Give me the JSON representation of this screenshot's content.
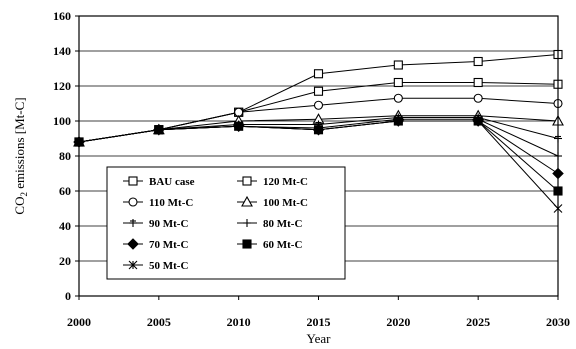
{
  "chart_data": {
    "type": "line",
    "xlabel": "Year",
    "ylabel_main": "CO",
    "ylabel_sub": "2",
    "ylabel_rest": " emissions [Mt-C]",
    "xlim": [
      2000,
      2030
    ],
    "ylim": [
      0,
      160
    ],
    "xticks": [
      "2000",
      "2005",
      "2010",
      "2015",
      "2020",
      "2025",
      "2030"
    ],
    "yticks": [
      "0",
      "20",
      "40",
      "60",
      "80",
      "100",
      "120",
      "140",
      "160"
    ],
    "grid": "horizontal",
    "legend_position": "bottom-left",
    "x": [
      2000,
      2005,
      2010,
      2015,
      2020,
      2025,
      2030
    ],
    "series": [
      {
        "name": "BAU case",
        "marker": "square-open",
        "values": [
          88,
          95,
          105,
          127,
          132,
          134,
          138
        ]
      },
      {
        "name": "120 Mt-C",
        "marker": "square-open",
        "values": [
          88,
          95,
          105,
          117,
          122,
          122,
          121
        ]
      },
      {
        "name": "110 Mt-C",
        "marker": "circle-open",
        "values": [
          88,
          95,
          105,
          109,
          113,
          113,
          110
        ]
      },
      {
        "name": "100 Mt-C",
        "marker": "triangle-open",
        "values": [
          88,
          95,
          100,
          101,
          103,
          103,
          100
        ]
      },
      {
        "name": "90 Mt-C",
        "marker": "plus-bar",
        "values": [
          88,
          95,
          98,
          98,
          102,
          102,
          90
        ]
      },
      {
        "name": "80 Mt-C",
        "marker": "plus",
        "values": [
          88,
          95,
          97,
          96,
          101,
          101,
          80
        ]
      },
      {
        "name": "70 Mt-C",
        "marker": "diamond-filled",
        "values": [
          88,
          95,
          97,
          95,
          100,
          100,
          70
        ]
      },
      {
        "name": "60 Mt-C",
        "marker": "square-filled",
        "values": [
          88,
          95,
          97,
          95,
          100,
          100,
          60
        ]
      },
      {
        "name": "50 Mt-C",
        "marker": "asterisk",
        "values": [
          88,
          95,
          97,
          95,
          100,
          100,
          50
        ]
      }
    ]
  }
}
